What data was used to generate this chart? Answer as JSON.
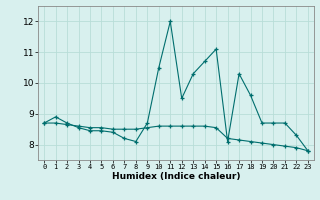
{
  "xlabel": "Humidex (Indice chaleur)",
  "x": [
    0,
    1,
    2,
    3,
    4,
    5,
    6,
    7,
    8,
    9,
    10,
    11,
    12,
    13,
    14,
    15,
    16,
    17,
    18,
    19,
    20,
    21,
    22,
    23
  ],
  "line1": [
    8.7,
    8.9,
    8.7,
    8.55,
    8.45,
    8.45,
    8.4,
    8.2,
    8.1,
    8.7,
    10.5,
    12.0,
    9.5,
    10.3,
    10.7,
    11.1,
    8.1,
    10.3,
    9.6,
    8.7,
    8.7,
    8.7,
    8.3,
    7.8
  ],
  "line2": [
    8.7,
    8.7,
    8.65,
    8.6,
    8.55,
    8.55,
    8.5,
    8.5,
    8.5,
    8.55,
    8.6,
    8.6,
    8.6,
    8.6,
    8.6,
    8.55,
    8.2,
    8.15,
    8.1,
    8.05,
    8.0,
    7.95,
    7.9,
    7.8
  ],
  "line_color": "#006e6e",
  "bg_color": "#d8f0ee",
  "grid_color": "#b8ddd8",
  "ylim": [
    7.5,
    12.5
  ],
  "yticks": [
    8,
    9,
    10,
    11,
    12
  ],
  "xticks": [
    0,
    1,
    2,
    3,
    4,
    5,
    6,
    7,
    8,
    9,
    10,
    11,
    12,
    13,
    14,
    15,
    16,
    17,
    18,
    19,
    20,
    21,
    22,
    23
  ]
}
